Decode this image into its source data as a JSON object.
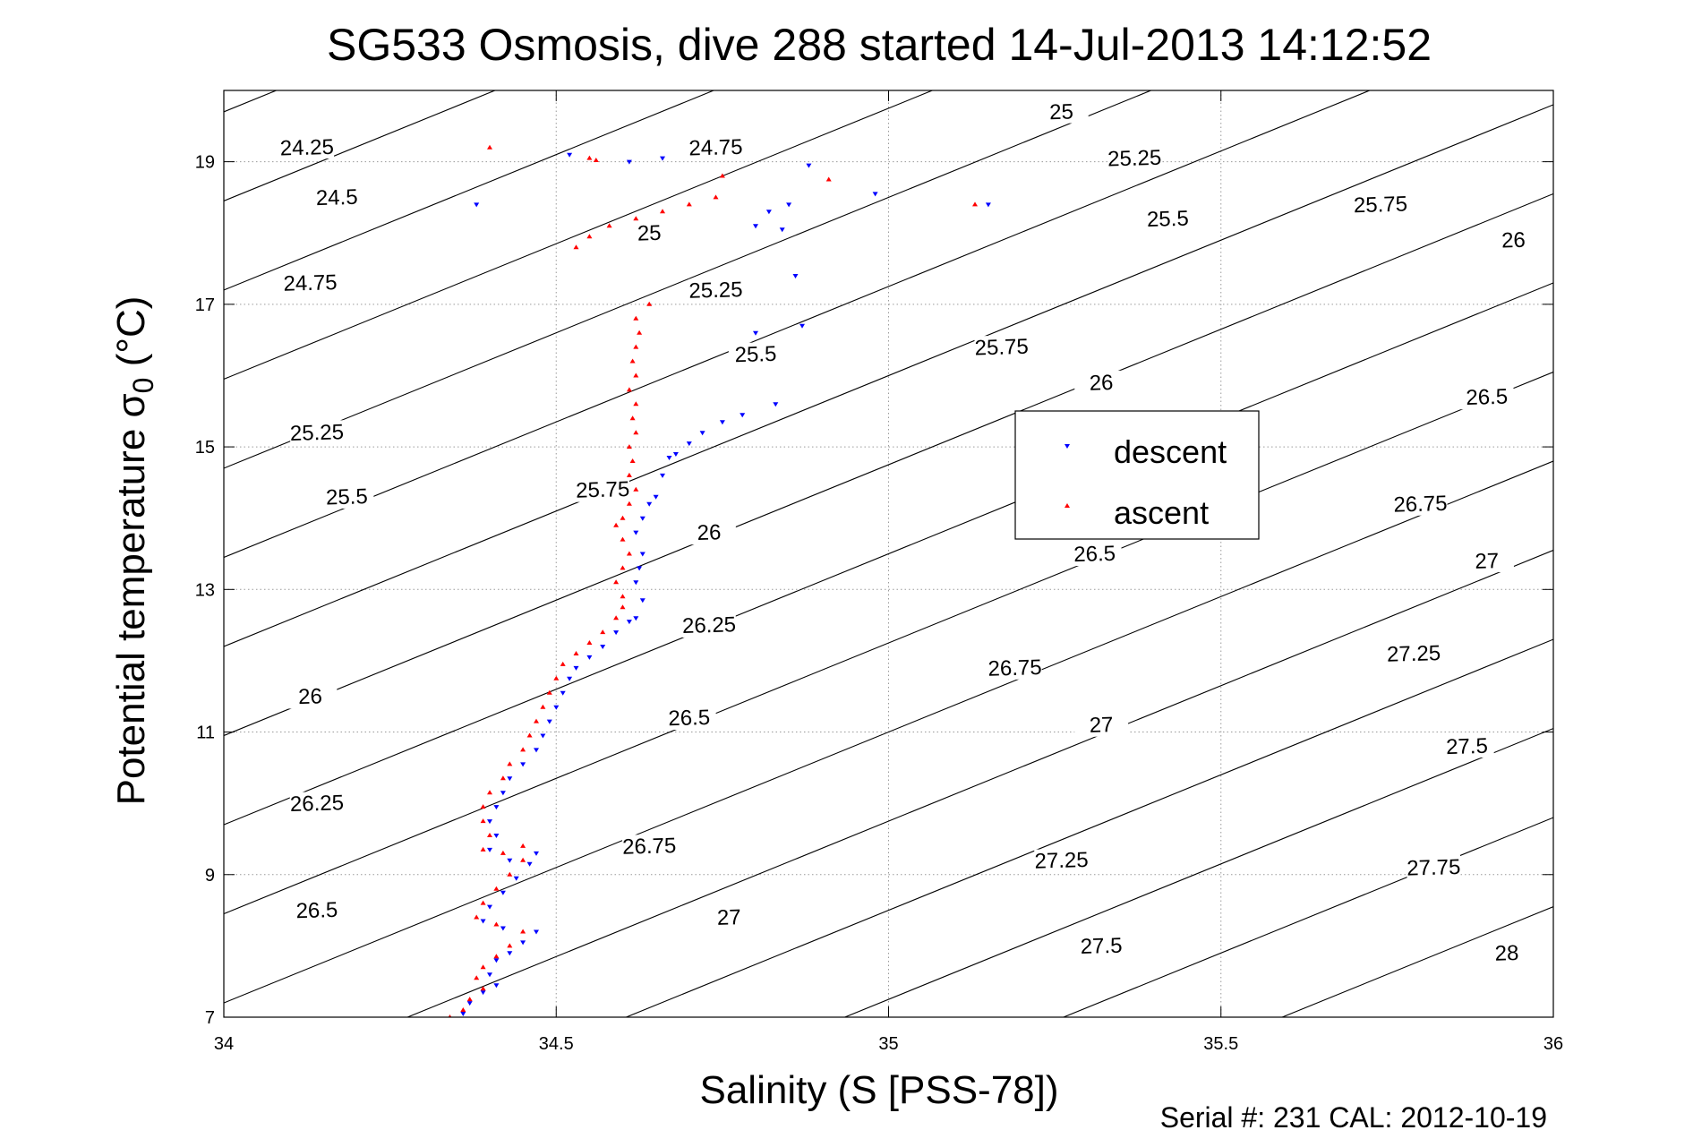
{
  "chart_data": {
    "type": "scatter",
    "title": "SG533 Osmosis, dive 288 started 14-Jul-2013 14:12:52",
    "xlabel": "Salinity (S [PSS-78])",
    "ylabel": "Potential temperature σ",
    "ylabel_subscript": "0",
    "ylabel_unit": " (°C)",
    "xlim": [
      34,
      36
    ],
    "ylim": [
      7,
      20
    ],
    "x_ticks": [
      34,
      34.5,
      35,
      35.5,
      36
    ],
    "x_tick_labels": [
      "34",
      "34.5",
      "35",
      "35.5",
      "36"
    ],
    "y_ticks": [
      7,
      9,
      11,
      13,
      15,
      17,
      19
    ],
    "y_tick_labels": [
      "7",
      "9",
      "11",
      "13",
      "15",
      "17",
      "19"
    ],
    "grid": true,
    "legend_position": "center-right",
    "footer": "Serial #: 231  CAL: 2012-10-19",
    "contours": {
      "levels": [
        24.25,
        24.5,
        24.75,
        25,
        25.25,
        25.5,
        25.75,
        26,
        26.25,
        26.5,
        26.75,
        27,
        27.25,
        27.5,
        27.75,
        28
      ],
      "labels": [
        {
          "text": "24.25",
          "s": 34.125,
          "t": 19.2
        },
        {
          "text": "24.5",
          "s": 34.17,
          "t": 18.5
        },
        {
          "text": "24.75",
          "s": 34.13,
          "t": 17.3
        },
        {
          "text": "25.25",
          "s": 34.14,
          "t": 15.2
        },
        {
          "text": "25.5",
          "s": 34.185,
          "t": 14.3
        },
        {
          "text": "26",
          "s": 34.13,
          "t": 11.5
        },
        {
          "text": "26.25",
          "s": 34.14,
          "t": 10.0
        },
        {
          "text": "26.5",
          "s": 34.14,
          "t": 8.5
        },
        {
          "text": "24.75",
          "s": 34.74,
          "t": 19.2
        },
        {
          "text": "25",
          "s": 35.26,
          "t": 19.7
        },
        {
          "text": "25.25",
          "s": 35.37,
          "t": 19.05
        },
        {
          "text": "25",
          "s": 34.64,
          "t": 18.0
        },
        {
          "text": "25.25",
          "s": 34.74,
          "t": 17.2
        },
        {
          "text": "25.5",
          "s": 34.8,
          "t": 16.3
        },
        {
          "text": "25.5",
          "s": 35.42,
          "t": 18.2
        },
        {
          "text": "25.75",
          "s": 35.74,
          "t": 18.4
        },
        {
          "text": "26",
          "s": 35.94,
          "t": 17.9
        },
        {
          "text": "25.75",
          "s": 34.57,
          "t": 14.4
        },
        {
          "text": "25.75",
          "s": 35.17,
          "t": 16.4
        },
        {
          "text": "26",
          "s": 35.32,
          "t": 15.9
        },
        {
          "text": "26",
          "s": 34.73,
          "t": 13.8
        },
        {
          "text": "26.5",
          "s": 35.9,
          "t": 15.7
        },
        {
          "text": "26.5",
          "s": 35.31,
          "t": 13.5
        },
        {
          "text": "26.75",
          "s": 35.8,
          "t": 14.2
        },
        {
          "text": "26.25",
          "s": 34.73,
          "t": 12.5
        },
        {
          "text": "26.75",
          "s": 35.19,
          "t": 11.9
        },
        {
          "text": "27",
          "s": 35.9,
          "t": 13.4
        },
        {
          "text": "26.5",
          "s": 34.7,
          "t": 11.2
        },
        {
          "text": "27",
          "s": 35.32,
          "t": 11.1
        },
        {
          "text": "27.25",
          "s": 35.79,
          "t": 12.1
        },
        {
          "text": "26.75",
          "s": 34.64,
          "t": 9.4
        },
        {
          "text": "27.25",
          "s": 35.26,
          "t": 9.2
        },
        {
          "text": "27.5",
          "s": 35.87,
          "t": 10.8
        },
        {
          "text": "27",
          "s": 34.76,
          "t": 8.4
        },
        {
          "text": "27.5",
          "s": 35.32,
          "t": 8.0
        },
        {
          "text": "27.75",
          "s": 35.82,
          "t": 9.1
        },
        {
          "text": "28",
          "s": 35.93,
          "t": 7.9
        }
      ]
    },
    "series": [
      {
        "name": "descent",
        "color": "#0000ff",
        "marker": "triangle-down",
        "points": [
          [
            34.38,
            18.4
          ],
          [
            34.52,
            19.1
          ],
          [
            34.61,
            19.0
          ],
          [
            34.66,
            19.05
          ],
          [
            34.82,
            18.3
          ],
          [
            34.85,
            18.4
          ],
          [
            34.8,
            18.1
          ],
          [
            34.84,
            18.05
          ],
          [
            34.88,
            18.95
          ],
          [
            34.98,
            18.55
          ],
          [
            35.15,
            18.4
          ],
          [
            34.86,
            17.4
          ],
          [
            34.8,
            16.6
          ],
          [
            34.87,
            16.7
          ],
          [
            34.83,
            15.6
          ],
          [
            34.78,
            15.45
          ],
          [
            34.75,
            15.35
          ],
          [
            34.72,
            15.2
          ],
          [
            34.7,
            15.05
          ],
          [
            34.68,
            14.9
          ],
          [
            34.67,
            14.85
          ],
          [
            34.66,
            14.6
          ],
          [
            34.65,
            14.3
          ],
          [
            34.64,
            14.2
          ],
          [
            34.63,
            14.0
          ],
          [
            34.62,
            13.8
          ],
          [
            34.63,
            13.5
          ],
          [
            34.625,
            13.3
          ],
          [
            34.62,
            13.1
          ],
          [
            34.63,
            12.85
          ],
          [
            34.62,
            12.6
          ],
          [
            34.61,
            12.55
          ],
          [
            34.59,
            12.4
          ],
          [
            34.57,
            12.2
          ],
          [
            34.55,
            12.05
          ],
          [
            34.53,
            11.9
          ],
          [
            34.52,
            11.75
          ],
          [
            34.51,
            11.55
          ],
          [
            34.5,
            11.35
          ],
          [
            34.49,
            11.15
          ],
          [
            34.48,
            10.95
          ],
          [
            34.47,
            10.75
          ],
          [
            34.45,
            10.55
          ],
          [
            34.43,
            10.35
          ],
          [
            34.42,
            10.15
          ],
          [
            34.41,
            9.95
          ],
          [
            34.4,
            9.75
          ],
          [
            34.41,
            9.55
          ],
          [
            34.4,
            9.35
          ],
          [
            34.43,
            9.2
          ],
          [
            34.47,
            9.3
          ],
          [
            34.46,
            9.15
          ],
          [
            34.44,
            8.95
          ],
          [
            34.42,
            8.75
          ],
          [
            34.4,
            8.55
          ],
          [
            34.39,
            8.35
          ],
          [
            34.42,
            8.25
          ],
          [
            34.47,
            8.2
          ],
          [
            34.45,
            8.05
          ],
          [
            34.43,
            7.9
          ],
          [
            34.41,
            7.8
          ],
          [
            34.4,
            7.6
          ],
          [
            34.41,
            7.45
          ],
          [
            34.39,
            7.35
          ],
          [
            34.37,
            7.2
          ],
          [
            34.36,
            7.05
          ]
        ]
      },
      {
        "name": "ascent",
        "color": "#ff0000",
        "marker": "triangle-up",
        "points": [
          [
            34.4,
            19.2
          ],
          [
            34.55,
            19.05
          ],
          [
            34.56,
            19.02
          ],
          [
            34.53,
            17.8
          ],
          [
            34.55,
            17.95
          ],
          [
            34.58,
            18.1
          ],
          [
            34.62,
            18.2
          ],
          [
            34.66,
            18.3
          ],
          [
            34.7,
            18.4
          ],
          [
            34.74,
            18.5
          ],
          [
            34.75,
            18.8
          ],
          [
            34.91,
            18.75
          ],
          [
            35.13,
            18.4
          ],
          [
            34.64,
            17.0
          ],
          [
            34.62,
            16.8
          ],
          [
            34.625,
            16.6
          ],
          [
            34.62,
            16.4
          ],
          [
            34.615,
            16.2
          ],
          [
            34.62,
            16.0
          ],
          [
            34.61,
            15.8
          ],
          [
            34.62,
            15.6
          ],
          [
            34.615,
            15.4
          ],
          [
            34.62,
            15.2
          ],
          [
            34.61,
            15.0
          ],
          [
            34.615,
            14.8
          ],
          [
            34.61,
            14.6
          ],
          [
            34.62,
            14.4
          ],
          [
            34.61,
            14.2
          ],
          [
            34.6,
            14.0
          ],
          [
            34.59,
            13.9
          ],
          [
            34.6,
            13.7
          ],
          [
            34.61,
            13.5
          ],
          [
            34.6,
            13.3
          ],
          [
            34.59,
            13.1
          ],
          [
            34.6,
            12.9
          ],
          [
            34.6,
            12.75
          ],
          [
            34.59,
            12.6
          ],
          [
            34.57,
            12.4
          ],
          [
            34.55,
            12.25
          ],
          [
            34.53,
            12.1
          ],
          [
            34.51,
            11.95
          ],
          [
            34.5,
            11.75
          ],
          [
            34.49,
            11.55
          ],
          [
            34.48,
            11.35
          ],
          [
            34.47,
            11.15
          ],
          [
            34.46,
            10.95
          ],
          [
            34.45,
            10.75
          ],
          [
            34.43,
            10.55
          ],
          [
            34.42,
            10.35
          ],
          [
            34.4,
            10.15
          ],
          [
            34.39,
            9.95
          ],
          [
            34.39,
            9.75
          ],
          [
            34.4,
            9.55
          ],
          [
            34.39,
            9.35
          ],
          [
            34.42,
            9.3
          ],
          [
            34.45,
            9.4
          ],
          [
            34.45,
            9.2
          ],
          [
            34.43,
            9.0
          ],
          [
            34.41,
            8.8
          ],
          [
            34.39,
            8.6
          ],
          [
            34.38,
            8.4
          ],
          [
            34.41,
            8.3
          ],
          [
            34.45,
            8.2
          ],
          [
            34.43,
            8.0
          ],
          [
            34.41,
            7.85
          ],
          [
            34.39,
            7.7
          ],
          [
            34.38,
            7.55
          ],
          [
            34.39,
            7.4
          ],
          [
            34.37,
            7.25
          ],
          [
            34.36,
            7.1
          ],
          [
            34.34,
            7.0
          ]
        ]
      }
    ]
  }
}
